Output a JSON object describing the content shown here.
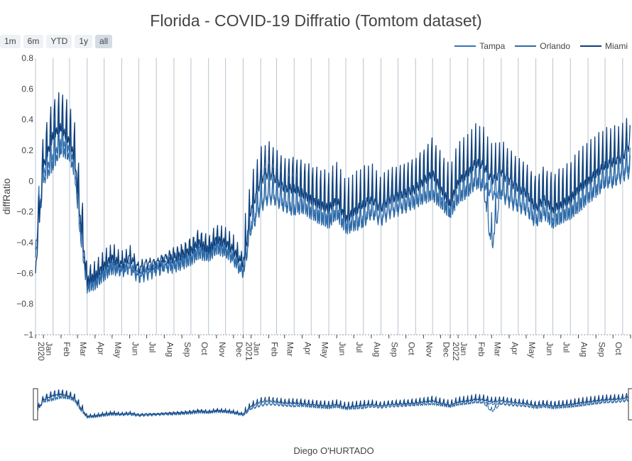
{
  "title": "Florida - COVID-19 Diffratio (Tomtom dataset)",
  "range_buttons": [
    "1m",
    "6m",
    "YTD",
    "1y",
    "all"
  ],
  "active_range": "all",
  "credit": "Diego O'HURTADO",
  "chart_data": {
    "type": "line",
    "title": "Florida - COVID-19 Diffratio (Tomtom dataset)",
    "xlabel": "",
    "ylabel": "diffRatio",
    "x_range": [
      "2020-01-01",
      "2022-11-15"
    ],
    "ylim": [
      -1,
      0.8
    ],
    "y_ticks": [
      -1,
      -0.8,
      -0.6,
      -0.4,
      -0.2,
      0,
      0.2,
      0.4,
      0.6,
      0.8
    ],
    "y_tick_labels": [
      "−1",
      "−0.8",
      "−0.6",
      "−0.4",
      "−0.2",
      "0",
      "0.2",
      "0.4",
      "0.6",
      "0.8"
    ],
    "x_tick_labels": [
      {
        "date": "2020-01-01",
        "label": "2020"
      },
      {
        "date": "2020-01-15",
        "label": "Jan"
      },
      {
        "date": "2020-02-15",
        "label": "Feb"
      },
      {
        "date": "2020-03-15",
        "label": "Mar"
      },
      {
        "date": "2020-04-15",
        "label": "Apr"
      },
      {
        "date": "2020-05-15",
        "label": "May"
      },
      {
        "date": "2020-06-15",
        "label": "Jun"
      },
      {
        "date": "2020-07-15",
        "label": "Jul"
      },
      {
        "date": "2020-08-15",
        "label": "Aug"
      },
      {
        "date": "2020-09-15",
        "label": "Sep"
      },
      {
        "date": "2020-10-15",
        "label": "Oct"
      },
      {
        "date": "2020-11-15",
        "label": "Nov"
      },
      {
        "date": "2020-12-15",
        "label": "Dec"
      },
      {
        "date": "2021-01-01",
        "label": "2021"
      },
      {
        "date": "2021-01-15",
        "label": "Jan"
      },
      {
        "date": "2021-02-15",
        "label": "Feb"
      },
      {
        "date": "2021-03-15",
        "label": "Mar"
      },
      {
        "date": "2021-04-15",
        "label": "Apr"
      },
      {
        "date": "2021-05-15",
        "label": "May"
      },
      {
        "date": "2021-06-15",
        "label": "Jun"
      },
      {
        "date": "2021-07-15",
        "label": "Jul"
      },
      {
        "date": "2021-08-15",
        "label": "Aug"
      },
      {
        "date": "2021-09-15",
        "label": "Sep"
      },
      {
        "date": "2021-10-15",
        "label": "Oct"
      },
      {
        "date": "2021-11-15",
        "label": "Nov"
      },
      {
        "date": "2021-12-15",
        "label": "Dec"
      },
      {
        "date": "2022-01-01",
        "label": "2022"
      },
      {
        "date": "2022-01-15",
        "label": "Jan"
      },
      {
        "date": "2022-02-15",
        "label": "Feb"
      },
      {
        "date": "2022-03-15",
        "label": "Mar"
      },
      {
        "date": "2022-04-15",
        "label": "Apr"
      },
      {
        "date": "2022-05-15",
        "label": "May"
      },
      {
        "date": "2022-06-15",
        "label": "Jun"
      },
      {
        "date": "2022-07-15",
        "label": "Jul"
      },
      {
        "date": "2022-08-15",
        "label": "Aug"
      },
      {
        "date": "2022-09-15",
        "label": "Sep"
      },
      {
        "date": "2022-10-15",
        "label": "Oct"
      },
      {
        "date": "2022-11-15",
        "label": "Nov"
      }
    ],
    "grid": "vertical lines at month boundaries",
    "legend_position": "top-right",
    "range_slider": true,
    "series": [
      {
        "name": "Tampa",
        "color": "#3574b5",
        "x": [
          "2020-01-01",
          "2020-01-15",
          "2020-02-01",
          "2020-02-15",
          "2020-03-01",
          "2020-03-10",
          "2020-03-20",
          "2020-04-01",
          "2020-04-15",
          "2020-05-01",
          "2020-05-15",
          "2020-06-01",
          "2020-06-15",
          "2020-07-01",
          "2020-07-15",
          "2020-08-01",
          "2020-08-15",
          "2020-09-01",
          "2020-09-15",
          "2020-10-01",
          "2020-10-15",
          "2020-11-01",
          "2020-11-15",
          "2020-12-01",
          "2020-12-15",
          "2021-01-01",
          "2021-01-15",
          "2021-02-01",
          "2021-02-15",
          "2021-03-01",
          "2021-03-15",
          "2021-04-01",
          "2021-04-15",
          "2021-05-01",
          "2021-05-15",
          "2021-06-01",
          "2021-06-15",
          "2021-07-01",
          "2021-07-15",
          "2021-08-01",
          "2021-08-15",
          "2021-09-01",
          "2021-09-15",
          "2021-10-01",
          "2021-10-15",
          "2021-11-01",
          "2021-11-15",
          "2021-12-01",
          "2021-12-15",
          "2022-01-01",
          "2022-01-15",
          "2022-02-01",
          "2022-02-15",
          "2022-03-01",
          "2022-03-15",
          "2022-04-01",
          "2022-04-15",
          "2022-05-01",
          "2022-05-15",
          "2022-06-01",
          "2022-06-15",
          "2022-07-01",
          "2022-07-15",
          "2022-08-01",
          "2022-08-15",
          "2022-09-01",
          "2022-09-15",
          "2022-10-01",
          "2022-10-15",
          "2022-11-01",
          "2022-11-15"
        ],
        "y": [
          -0.45,
          0.05,
          0.15,
          0.25,
          0.2,
          0.1,
          -0.3,
          -0.68,
          -0.65,
          -0.6,
          -0.55,
          -0.58,
          -0.55,
          -0.62,
          -0.6,
          -0.58,
          -0.56,
          -0.55,
          -0.52,
          -0.5,
          -0.45,
          -0.48,
          -0.42,
          -0.45,
          -0.5,
          -0.6,
          -0.3,
          -0.15,
          -0.1,
          -0.12,
          -0.15,
          -0.18,
          -0.15,
          -0.2,
          -0.22,
          -0.25,
          -0.2,
          -0.3,
          -0.28,
          -0.25,
          -0.2,
          -0.25,
          -0.2,
          -0.18,
          -0.15,
          -0.12,
          -0.1,
          -0.08,
          -0.12,
          -0.2,
          -0.1,
          -0.05,
          0.0,
          -0.02,
          -0.1,
          -0.08,
          -0.12,
          -0.15,
          -0.18,
          -0.25,
          -0.2,
          -0.25,
          -0.22,
          -0.2,
          -0.15,
          -0.1,
          -0.05,
          0.0,
          0.0,
          0.05,
          0.1
        ]
      },
      {
        "name": "Orlando",
        "color": "#2e6aa6",
        "x": [
          "2020-01-01",
          "2020-01-15",
          "2020-02-01",
          "2020-02-15",
          "2020-03-01",
          "2020-03-10",
          "2020-03-20",
          "2020-04-01",
          "2020-04-15",
          "2020-05-01",
          "2020-05-15",
          "2020-06-01",
          "2020-06-15",
          "2020-07-01",
          "2020-07-15",
          "2020-08-01",
          "2020-08-15",
          "2020-09-01",
          "2020-09-15",
          "2020-10-01",
          "2020-10-15",
          "2020-11-01",
          "2020-11-15",
          "2020-12-01",
          "2020-12-15",
          "2021-01-01",
          "2021-01-15",
          "2021-02-01",
          "2021-02-15",
          "2021-03-01",
          "2021-03-15",
          "2021-04-01",
          "2021-04-15",
          "2021-05-01",
          "2021-05-15",
          "2021-06-01",
          "2021-06-15",
          "2021-07-01",
          "2021-07-15",
          "2021-08-01",
          "2021-08-15",
          "2021-09-01",
          "2021-09-15",
          "2021-10-01",
          "2021-10-15",
          "2021-11-01",
          "2021-11-15",
          "2021-12-01",
          "2021-12-15",
          "2022-01-01",
          "2022-01-15",
          "2022-02-01",
          "2022-02-15",
          "2022-03-01",
          "2022-03-15",
          "2022-04-01",
          "2022-04-15",
          "2022-05-01",
          "2022-05-15",
          "2022-06-01",
          "2022-06-15",
          "2022-07-01",
          "2022-07-15",
          "2022-08-01",
          "2022-08-15",
          "2022-09-01",
          "2022-09-15",
          "2022-10-01",
          "2022-10-15",
          "2022-11-01",
          "2022-11-15"
        ],
        "y": [
          -0.5,
          0.0,
          0.1,
          0.2,
          0.15,
          0.05,
          -0.35,
          -0.7,
          -0.68,
          -0.62,
          -0.58,
          -0.6,
          -0.58,
          -0.64,
          -0.62,
          -0.6,
          -0.58,
          -0.57,
          -0.55,
          -0.52,
          -0.48,
          -0.5,
          -0.45,
          -0.47,
          -0.52,
          -0.62,
          -0.33,
          -0.18,
          -0.12,
          -0.14,
          -0.18,
          -0.2,
          -0.18,
          -0.22,
          -0.25,
          -0.28,
          -0.22,
          -0.32,
          -0.3,
          -0.28,
          -0.22,
          -0.27,
          -0.22,
          -0.2,
          -0.18,
          -0.15,
          -0.12,
          -0.1,
          -0.15,
          -0.22,
          -0.12,
          -0.08,
          -0.02,
          -0.05,
          -0.45,
          -0.1,
          -0.15,
          -0.18,
          -0.2,
          -0.28,
          -0.22,
          -0.28,
          -0.25,
          -0.22,
          -0.18,
          -0.12,
          -0.08,
          -0.02,
          -0.02,
          0.02,
          0.05
        ]
      },
      {
        "name": "Miami",
        "color": "#0e3f7a",
        "x": [
          "2020-01-01",
          "2020-01-15",
          "2020-02-01",
          "2020-02-15",
          "2020-03-01",
          "2020-03-10",
          "2020-03-20",
          "2020-04-01",
          "2020-04-15",
          "2020-05-01",
          "2020-05-15",
          "2020-06-01",
          "2020-06-15",
          "2020-07-01",
          "2020-07-15",
          "2020-08-01",
          "2020-08-15",
          "2020-09-01",
          "2020-09-15",
          "2020-10-01",
          "2020-10-15",
          "2020-11-01",
          "2020-11-15",
          "2020-12-01",
          "2020-12-15",
          "2021-01-01",
          "2021-01-15",
          "2021-02-01",
          "2021-02-15",
          "2021-03-01",
          "2021-03-15",
          "2021-04-01",
          "2021-04-15",
          "2021-05-01",
          "2021-05-15",
          "2021-06-01",
          "2021-06-15",
          "2021-07-01",
          "2021-07-15",
          "2021-08-01",
          "2021-08-15",
          "2021-09-01",
          "2021-09-15",
          "2021-10-01",
          "2021-10-15",
          "2021-11-01",
          "2021-11-15",
          "2021-12-01",
          "2021-12-15",
          "2022-01-01",
          "2022-01-15",
          "2022-02-01",
          "2022-02-15",
          "2022-03-01",
          "2022-03-15",
          "2022-04-01",
          "2022-04-15",
          "2022-05-01",
          "2022-05-15",
          "2022-06-01",
          "2022-06-15",
          "2022-07-01",
          "2022-07-15",
          "2022-08-01",
          "2022-08-15",
          "2022-09-01",
          "2022-09-15",
          "2022-10-01",
          "2022-10-15",
          "2022-11-01",
          "2022-11-15"
        ],
        "y": [
          -0.6,
          0.1,
          0.3,
          0.35,
          0.25,
          0.15,
          -0.25,
          -0.65,
          -0.62,
          -0.55,
          -0.5,
          -0.55,
          -0.5,
          -0.58,
          -0.55,
          -0.55,
          -0.52,
          -0.5,
          -0.48,
          -0.45,
          -0.4,
          -0.45,
          -0.38,
          -0.4,
          -0.45,
          -0.55,
          -0.2,
          0.0,
          0.05,
          0.0,
          -0.05,
          -0.05,
          -0.08,
          -0.12,
          -0.15,
          -0.18,
          -0.12,
          -0.25,
          -0.2,
          -0.15,
          -0.12,
          -0.18,
          -0.12,
          -0.1,
          -0.08,
          -0.05,
          0.0,
          0.05,
          -0.05,
          -0.15,
          0.0,
          0.05,
          0.12,
          0.1,
          0.0,
          0.05,
          0.0,
          -0.05,
          -0.08,
          -0.18,
          -0.12,
          -0.18,
          -0.15,
          -0.12,
          -0.05,
          0.0,
          0.05,
          0.1,
          0.12,
          0.15,
          0.25
        ]
      }
    ]
  }
}
